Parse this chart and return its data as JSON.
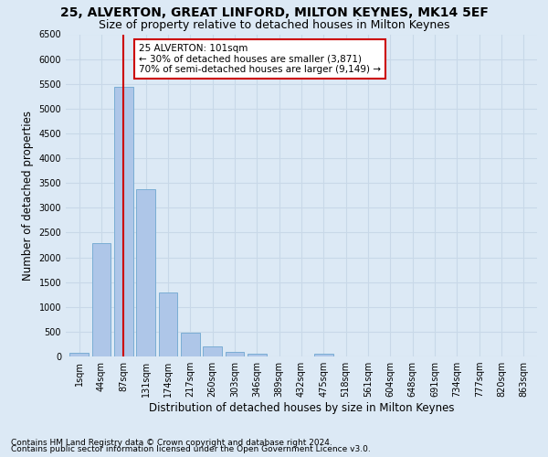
{
  "title": "25, ALVERTON, GREAT LINFORD, MILTON KEYNES, MK14 5EF",
  "subtitle": "Size of property relative to detached houses in Milton Keynes",
  "xlabel": "Distribution of detached houses by size in Milton Keynes",
  "ylabel": "Number of detached properties",
  "footnote1": "Contains HM Land Registry data © Crown copyright and database right 2024.",
  "footnote2": "Contains public sector information licensed under the Open Government Licence v3.0.",
  "bar_labels": [
    "1sqm",
    "44sqm",
    "87sqm",
    "131sqm",
    "174sqm",
    "217sqm",
    "260sqm",
    "303sqm",
    "346sqm",
    "389sqm",
    "432sqm",
    "475sqm",
    "518sqm",
    "561sqm",
    "604sqm",
    "648sqm",
    "691sqm",
    "734sqm",
    "777sqm",
    "820sqm",
    "863sqm"
  ],
  "bar_values": [
    70,
    2280,
    5440,
    3380,
    1300,
    480,
    210,
    100,
    55,
    0,
    0,
    60,
    0,
    0,
    0,
    0,
    0,
    0,
    0,
    0,
    0
  ],
  "bar_color": "#aec6e8",
  "bar_edge_color": "#7aadd4",
  "vline_x": 2,
  "vline_color": "#cc0000",
  "annotation_text": "25 ALVERTON: 101sqm\n← 30% of detached houses are smaller (3,871)\n70% of semi-detached houses are larger (9,149) →",
  "annotation_box_color": "#ffffff",
  "annotation_box_edge": "#cc0000",
  "ylim": [
    0,
    6500
  ],
  "yticks": [
    0,
    500,
    1000,
    1500,
    2000,
    2500,
    3000,
    3500,
    4000,
    4500,
    5000,
    5500,
    6000,
    6500
  ],
  "grid_color": "#c8d8e8",
  "background_color": "#dce9f5",
  "title_fontsize": 10,
  "subtitle_fontsize": 9,
  "footnote_fontsize": 6.5,
  "ylabel_fontsize": 8.5,
  "xlabel_fontsize": 8.5,
  "tick_fontsize": 7,
  "annot_fontsize": 7.5
}
